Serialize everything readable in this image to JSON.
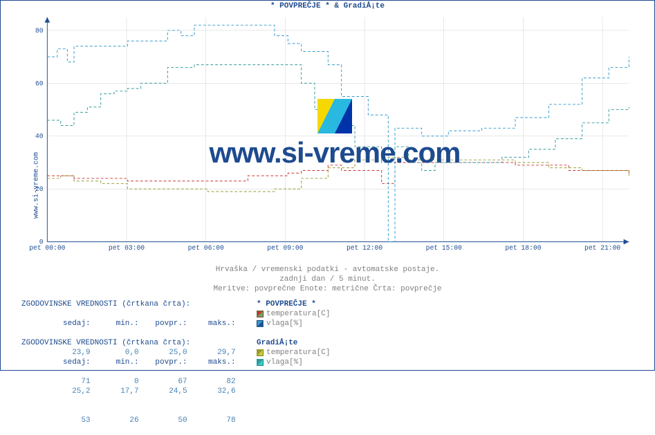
{
  "chart": {
    "title": "* POVPREČJE * & GradiÅ¡te",
    "ylabel": "www.si-vreme.com",
    "xlim": [
      "pet 00:00",
      "pet 22:00"
    ],
    "xticks": [
      "pet 00:00",
      "pet 03:00",
      "pet 06:00",
      "pet 09:00",
      "pet 12:00",
      "pet 15:00",
      "pet 18:00",
      "pet 21:00"
    ],
    "ylim": [
      0,
      85
    ],
    "yticks": [
      0,
      20,
      40,
      60,
      80
    ],
    "tick_fontsize": 10,
    "tick_color": "#1e4b8f",
    "grid_color": "#d0d0d0",
    "background_color": "#ffffff",
    "axis_color": "#1e4b8f",
    "dash_pattern": "4,3",
    "line_width": 1,
    "series": [
      {
        "name": "povp_temp",
        "color": "#cc3333",
        "points": [
          [
            0,
            25
          ],
          [
            20,
            25
          ],
          [
            40,
            24
          ],
          [
            80,
            24
          ],
          [
            120,
            23
          ],
          [
            180,
            23
          ],
          [
            240,
            23
          ],
          [
            300,
            25
          ],
          [
            350,
            25
          ],
          [
            360,
            26
          ],
          [
            380,
            27
          ],
          [
            420,
            29
          ],
          [
            440,
            27
          ],
          [
            500,
            22
          ],
          [
            520,
            30
          ],
          [
            540,
            30
          ],
          [
            600,
            30
          ],
          [
            650,
            30
          ],
          [
            700,
            29
          ],
          [
            780,
            27
          ],
          [
            870,
            26
          ]
        ]
      },
      {
        "name": "povp_vlaga",
        "color": "#3399cc",
        "points": [
          [
            0,
            70
          ],
          [
            15,
            73
          ],
          [
            30,
            68
          ],
          [
            40,
            74
          ],
          [
            80,
            74
          ],
          [
            120,
            76
          ],
          [
            150,
            76
          ],
          [
            180,
            80
          ],
          [
            200,
            78
          ],
          [
            220,
            82
          ],
          [
            280,
            82
          ],
          [
            320,
            82
          ],
          [
            340,
            78
          ],
          [
            360,
            75
          ],
          [
            380,
            72
          ],
          [
            420,
            67
          ],
          [
            440,
            55
          ],
          [
            480,
            48
          ],
          [
            510,
            0
          ],
          [
            520,
            43
          ],
          [
            560,
            40
          ],
          [
            600,
            42
          ],
          [
            650,
            43
          ],
          [
            700,
            47
          ],
          [
            750,
            52
          ],
          [
            800,
            62
          ],
          [
            840,
            66
          ],
          [
            870,
            70
          ]
        ]
      },
      {
        "name": "grad_temp",
        "color": "#999933",
        "points": [
          [
            0,
            24
          ],
          [
            20,
            25
          ],
          [
            40,
            23
          ],
          [
            80,
            22
          ],
          [
            120,
            20
          ],
          [
            180,
            20
          ],
          [
            240,
            19
          ],
          [
            300,
            19
          ],
          [
            340,
            20
          ],
          [
            380,
            24
          ],
          [
            420,
            28
          ],
          [
            460,
            31
          ],
          [
            500,
            32
          ],
          [
            540,
            31
          ],
          [
            600,
            31
          ],
          [
            650,
            31
          ],
          [
            700,
            30
          ],
          [
            750,
            28
          ],
          [
            800,
            27
          ],
          [
            870,
            25
          ]
        ]
      },
      {
        "name": "grad_vlaga",
        "color": "#339999",
        "points": [
          [
            0,
            46
          ],
          [
            20,
            44
          ],
          [
            40,
            49
          ],
          [
            60,
            51
          ],
          [
            80,
            56
          ],
          [
            100,
            57
          ],
          [
            120,
            58
          ],
          [
            140,
            60
          ],
          [
            180,
            66
          ],
          [
            220,
            67
          ],
          [
            280,
            67
          ],
          [
            320,
            67
          ],
          [
            360,
            67
          ],
          [
            380,
            60
          ],
          [
            400,
            50
          ],
          [
            420,
            44
          ],
          [
            460,
            36
          ],
          [
            500,
            30
          ],
          [
            520,
            36
          ],
          [
            540,
            30
          ],
          [
            560,
            27
          ],
          [
            580,
            30
          ],
          [
            620,
            30
          ],
          [
            650,
            30
          ],
          [
            680,
            32
          ],
          [
            720,
            35
          ],
          [
            760,
            39
          ],
          [
            800,
            45
          ],
          [
            840,
            50
          ],
          [
            870,
            51
          ]
        ]
      }
    ]
  },
  "watermark_text": "www.si-vreme.com",
  "subtitle_lines": [
    "Hrvaška / vremenski podatki - avtomatske postaje.",
    "zadnji dan / 5 minut.",
    "Meritve: povprečne  Enote: metrične  Črta: povprečje"
  ],
  "legend_header": "ZGODOVINSKE VREDNOSTI (črtkana črta):",
  "columns": {
    "sedaj": "sedaj:",
    "min": "min.:",
    "povpr": "povpr.:",
    "maks": "maks.:"
  },
  "block1": {
    "title": "* POVPREČJE *",
    "rows": [
      {
        "sedaj": "23,9",
        "min": "0,0",
        "povpr": "25,0",
        "maks": "29,7",
        "label": "temperatura[C]",
        "swatch_a": "#cc3333",
        "swatch_b": "#66aa66"
      },
      {
        "sedaj": "71",
        "min": "0",
        "povpr": "67",
        "maks": "82",
        "label": "vlaga[%]",
        "swatch_a": "#3399cc",
        "swatch_b": "#1e4b8f"
      }
    ]
  },
  "block2": {
    "title": "GradiÅ¡te",
    "rows": [
      {
        "sedaj": "25,2",
        "min": "17,7",
        "povpr": "24,5",
        "maks": "32,6",
        "label": "temperatura[C]",
        "swatch_a": "#999933",
        "swatch_b": "#cccc33"
      },
      {
        "sedaj": "53",
        "min": "26",
        "povpr": "50",
        "maks": "78",
        "label": "vlaga[%]",
        "swatch_a": "#339999",
        "swatch_b": "#33cccc"
      }
    ]
  },
  "logo_colors": {
    "yellow": "#f5d800",
    "cyan": "#29b8e0",
    "blue": "#0033aa"
  }
}
